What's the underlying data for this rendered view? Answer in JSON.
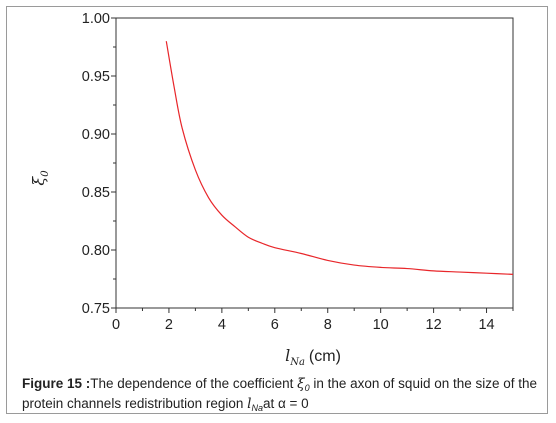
{
  "chart_data": {
    "type": "line",
    "x": [
      1.9,
      2.2,
      2.5,
      3.0,
      3.5,
      4.0,
      4.5,
      5.0,
      5.5,
      6.0,
      7.0,
      8.0,
      9.0,
      10.0,
      11.0,
      12.0,
      13.0,
      14.0,
      15.0
    ],
    "series": [
      {
        "values": [
          0.98,
          0.94,
          0.905,
          0.869,
          0.845,
          0.83,
          0.82,
          0.811,
          0.806,
          0.802,
          0.797,
          0.791,
          0.787,
          0.785,
          0.784,
          0.782,
          0.781,
          0.78,
          0.779
        ],
        "color": "#e8262a"
      }
    ],
    "xlim": [
      0,
      15
    ],
    "ylim": [
      0.75,
      1.0
    ],
    "x_ticks": [
      "0",
      "2",
      "4",
      "6",
      "8",
      "10",
      "12",
      "14"
    ],
    "y_ticks": [
      "0.75",
      "0.80",
      "0.85",
      "0.90",
      "0.95",
      "1.00"
    ],
    "xlabel": {
      "symbol": "l",
      "subscript": "Na",
      "unit": "(cm)"
    },
    "ylabel": {
      "symbol": "ξ",
      "subscript": "0"
    },
    "grid": false,
    "legend": "none"
  },
  "caption": {
    "lead": "Figure 15 :",
    "text1": "The dependence of the coefficient ",
    "sym1": "ξ",
    "sub1": "0",
    "text2": " in the axon of squid on the size of the protein channels redistribution region ",
    "sym2": "l",
    "sub2": "Na",
    "text3": "at α = 0"
  }
}
